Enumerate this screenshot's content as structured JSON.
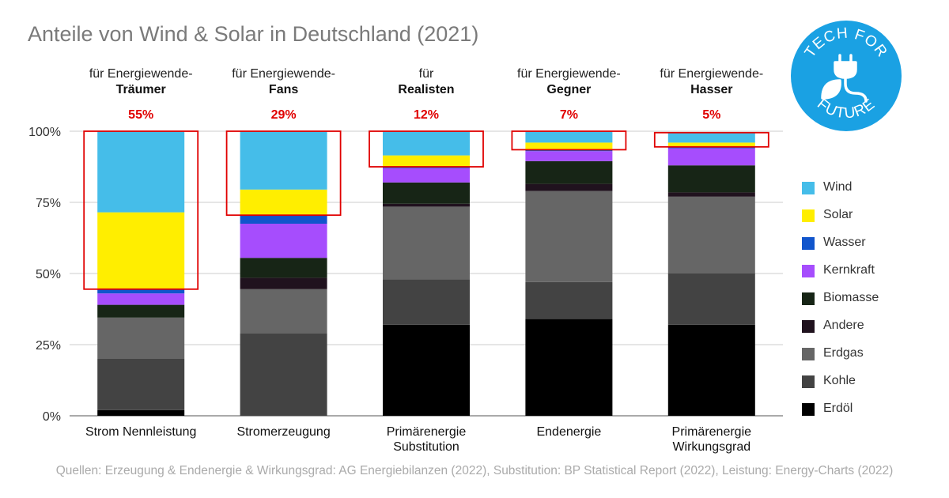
{
  "title": "Anteile von Wind & Solar in Deutschland (2021)",
  "source": "Quellen: Erzeugung & Endenergie & Wirkungsgrad: AG Energiebilanzen (2022), Substitution: BP Statistical Report (2022), Leistung: Energy-Charts (2022)",
  "logo": {
    "top_text": "TECH FOR",
    "bottom_text": "FUTURE",
    "icon": "plug-leaf-icon",
    "color": "#1aa1e3"
  },
  "chart_data": {
    "type": "bar",
    "stacked": true,
    "ylim": [
      0,
      100
    ],
    "yticks": [
      "0%",
      "25%",
      "50%",
      "75%",
      "100%"
    ],
    "grid": true,
    "legend_position": "right",
    "categories": [
      {
        "label": "Strom Nennleistung",
        "line1": "Strom Nennleistung",
        "line2": "",
        "group_top": "für Energiewende-",
        "group_bold": "Träumer",
        "share": "55%"
      },
      {
        "label": "Stromerzeugung",
        "line1": "Stromerzeugung",
        "line2": "",
        "group_top": "für Energiewende-",
        "group_bold": "Fans",
        "share": "29%"
      },
      {
        "label": "Primärenergie Substitution",
        "line1": "Primärenergie",
        "line2": "Substitution",
        "group_top": "für",
        "group_bold": "Realisten",
        "share": "12%"
      },
      {
        "label": "Endenergie",
        "line1": "Endenergie",
        "line2": "",
        "group_top": "für Energiewende-",
        "group_bold": "Gegner",
        "share": "7%"
      },
      {
        "label": "Primärenergie Wirkungsgrad",
        "line1": "Primärenergie",
        "line2": "Wirkungsgrad",
        "group_top": "für Energiewende-",
        "group_bold": "Hasser",
        "share": "5%"
      }
    ],
    "series": [
      {
        "name": "Erdöl",
        "color": "#000000",
        "values": [
          2,
          0,
          32,
          34,
          32
        ]
      },
      {
        "name": "Kohle",
        "color": "#434343",
        "values": [
          18,
          29,
          16,
          13,
          18
        ]
      },
      {
        "name": "Erdgas",
        "color": "#666666",
        "values": [
          14.5,
          15.5,
          25.5,
          32,
          27
        ]
      },
      {
        "name": "Andere",
        "color": "#20121e",
        "values": [
          0,
          4,
          1,
          2.5,
          1.5
        ]
      },
      {
        "name": "Biomasse",
        "color": "#172516",
        "values": [
          4.5,
          7,
          7.5,
          8,
          9.5
        ]
      },
      {
        "name": "Kernkraft",
        "color": "#a64dfd",
        "values": [
          4,
          12,
          5,
          3.5,
          6
        ]
      },
      {
        "name": "Wasser",
        "color": "#1155cc",
        "values": [
          1.5,
          3,
          0.5,
          0.5,
          0.5
        ]
      },
      {
        "name": "Solar",
        "color": "#ffee00",
        "values": [
          27,
          9,
          4,
          2.5,
          1.5
        ]
      },
      {
        "name": "Wind",
        "color": "#45bde9",
        "values": [
          28.5,
          20.5,
          8.5,
          4,
          3.5
        ]
      }
    ],
    "highlight_color": "#e00000"
  }
}
